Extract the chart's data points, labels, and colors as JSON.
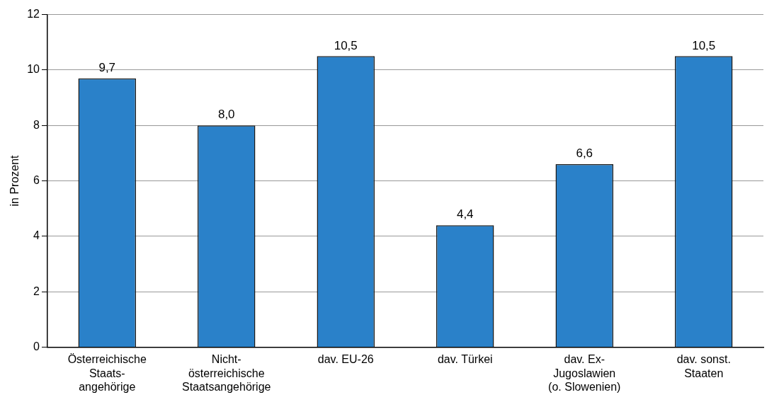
{
  "chart_data": {
    "type": "bar",
    "ylabel": "in Prozent",
    "categories": [
      "Österreichische\nStaats-\nangehörige",
      "Nicht-\nösterreichische\nStaatsangehörige",
      "dav. EU-26",
      "dav. Türkei",
      "dav. Ex-\nJugoslawien\n(o. Slowenien)",
      "dav. sonst.\nStaaten"
    ],
    "values": [
      9.7,
      8.0,
      10.5,
      4.4,
      6.6,
      10.5
    ],
    "value_labels": [
      "9,7",
      "8,0",
      "10,5",
      "4,4",
      "6,6",
      "10,5"
    ],
    "color": "#2a81c9",
    "ylim": [
      0,
      12
    ],
    "yticks": [
      0,
      2,
      4,
      6,
      8,
      10,
      12
    ],
    "grid": "y",
    "legend": false
  }
}
